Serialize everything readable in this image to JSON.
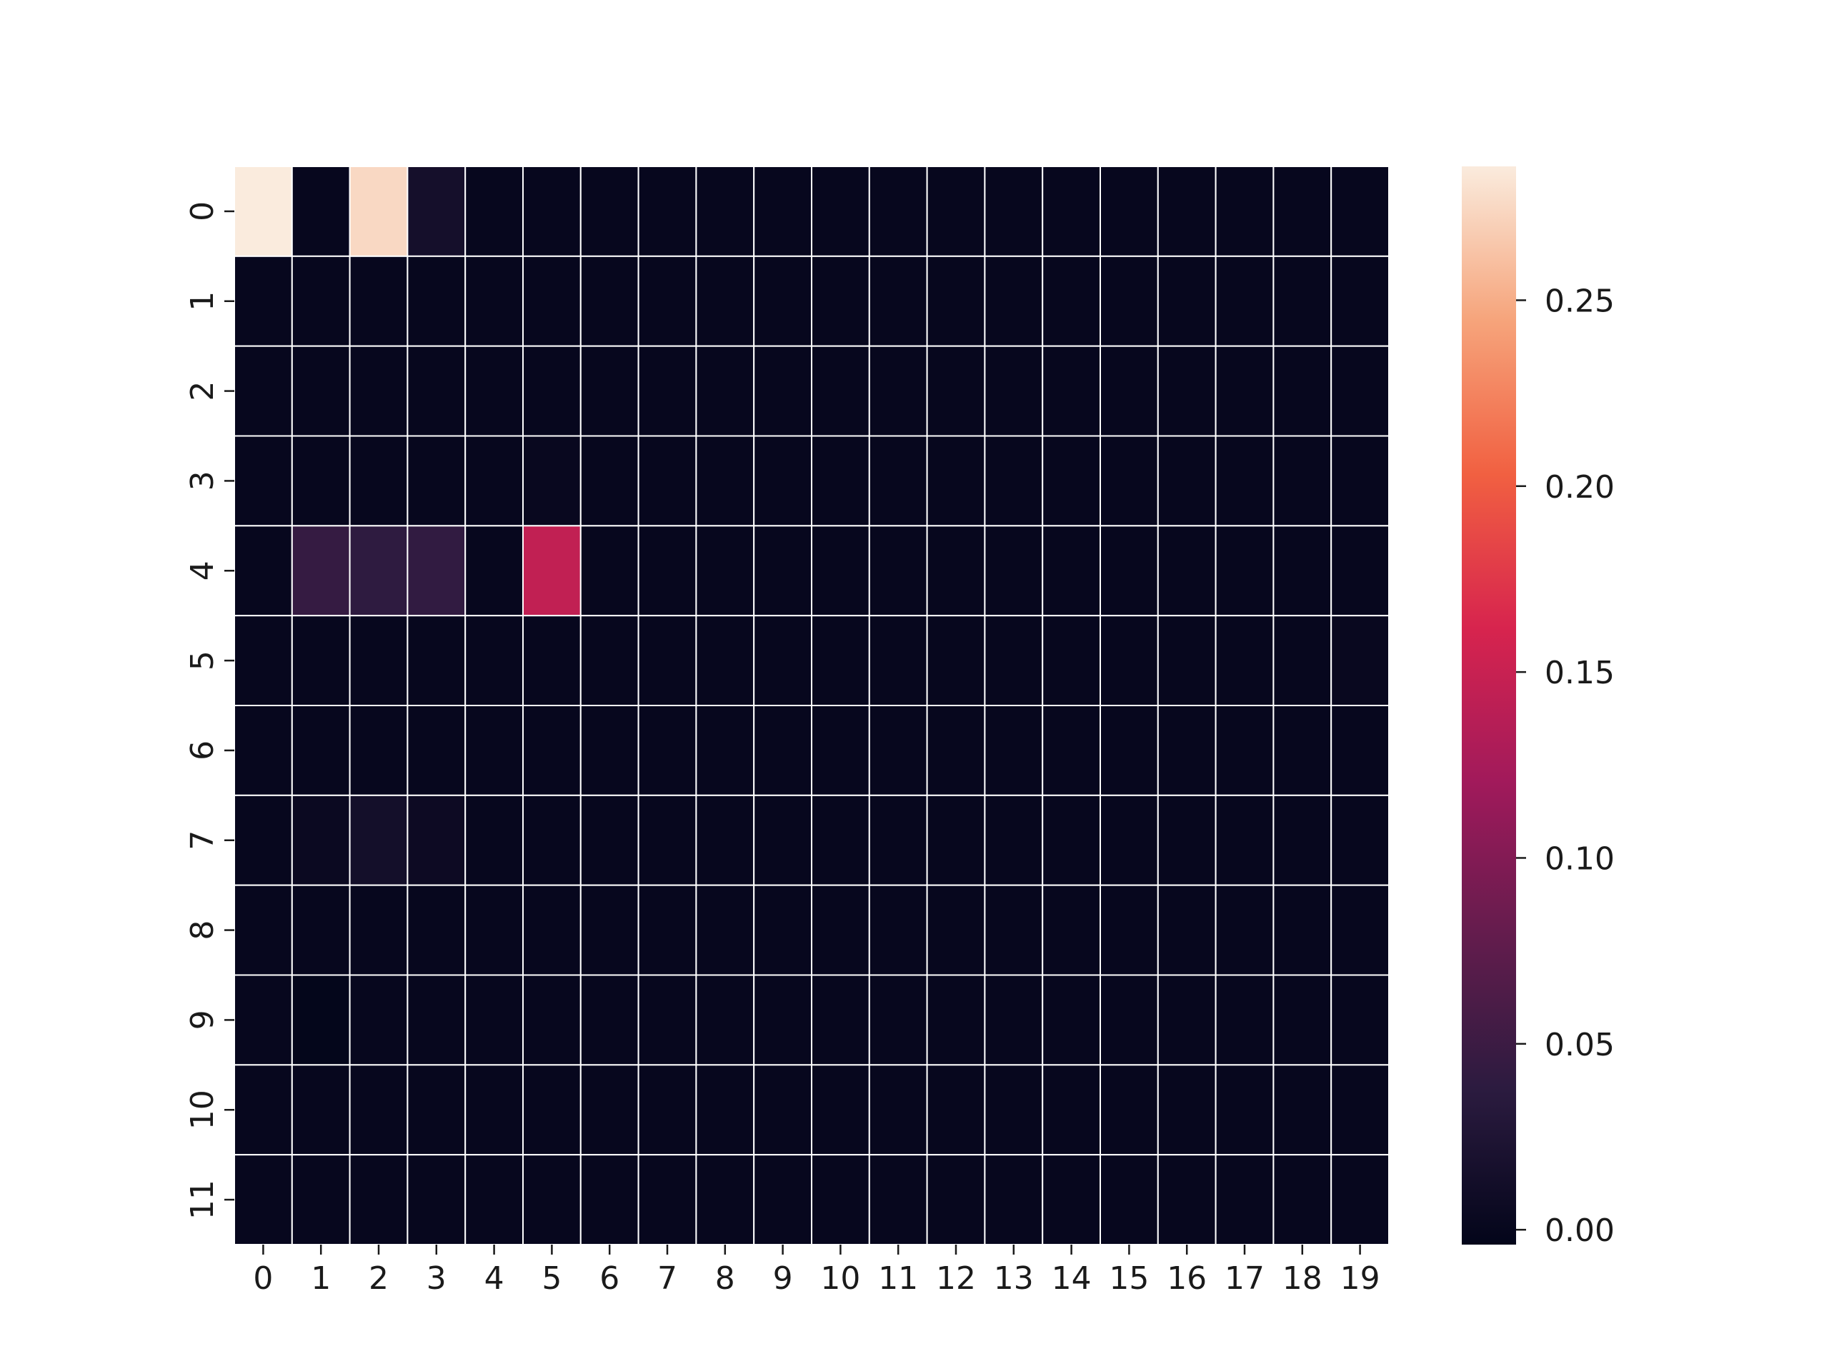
{
  "chart_data": {
    "type": "heatmap",
    "title": "",
    "xlabel": "",
    "ylabel": "",
    "x_categories": [
      "0",
      "1",
      "2",
      "3",
      "4",
      "5",
      "6",
      "7",
      "8",
      "9",
      "10",
      "11",
      "12",
      "13",
      "14",
      "15",
      "16",
      "17",
      "18",
      "19"
    ],
    "y_categories": [
      "0",
      "1",
      "2",
      "3",
      "4",
      "5",
      "6",
      "7",
      "8",
      "9",
      "10",
      "11"
    ],
    "values": [
      [
        0.286,
        0.0,
        0.275,
        0.015,
        0.0,
        0.0,
        0.0,
        0.0,
        0.0,
        0.0,
        0.0,
        0.0,
        0.0,
        0.0,
        0.0,
        0.0,
        0.0,
        0.0,
        0.0,
        0.0
      ],
      [
        0.0,
        0.0,
        0.0,
        0.0,
        0.0,
        0.0,
        0.0,
        0.0,
        0.0,
        0.0,
        0.0,
        0.0,
        0.0,
        0.0,
        0.0,
        0.0,
        0.0,
        0.0,
        0.0,
        0.0
      ],
      [
        0.0,
        0.0,
        0.0,
        0.0,
        0.0,
        0.0,
        0.0,
        0.0,
        0.0,
        0.0,
        0.0,
        0.0,
        0.0,
        0.0,
        0.0,
        0.0,
        0.0,
        0.0,
        0.0,
        0.0
      ],
      [
        0.0,
        0.0,
        0.0,
        0.0,
        0.0,
        0.002,
        0.0,
        0.0,
        0.0,
        0.0,
        0.0,
        0.0,
        0.0,
        0.0,
        0.0,
        0.0,
        0.0,
        0.0,
        0.0,
        0.0
      ],
      [
        0.0,
        0.045,
        0.04,
        0.042,
        0.0,
        0.145,
        0.0,
        0.0,
        0.0,
        0.0,
        0.0,
        0.0,
        0.0,
        0.0,
        0.0,
        0.0,
        0.0,
        0.0,
        0.0,
        0.0
      ],
      [
        0.0,
        0.0,
        0.0,
        0.0,
        0.0,
        0.0,
        0.0,
        0.0,
        0.0,
        0.0,
        0.0,
        0.0,
        0.0,
        0.0,
        0.0,
        0.0,
        0.0,
        0.0,
        0.0,
        0.002
      ],
      [
        0.0,
        0.0,
        0.0,
        0.0,
        0.0,
        0.0,
        0.0,
        0.0,
        0.0,
        0.0,
        0.0,
        0.0,
        0.0,
        0.0,
        0.0,
        0.0,
        0.0,
        0.0,
        0.0,
        0.0
      ],
      [
        0.0,
        0.004,
        0.014,
        0.006,
        0.0,
        0.0,
        0.0,
        0.0,
        0.0,
        0.0,
        0.0,
        0.0,
        0.0,
        0.0,
        0.0,
        0.0,
        0.0,
        0.0,
        0.0,
        0.0
      ],
      [
        0.0,
        0.0,
        0.0,
        0.0,
        0.0,
        0.0,
        0.0,
        0.0,
        0.0,
        0.0,
        0.0,
        0.0,
        0.0,
        0.0,
        0.0,
        0.0,
        0.0,
        0.0,
        0.0,
        0.0
      ],
      [
        0.0,
        -0.003,
        0.0,
        0.0,
        0.0,
        0.0,
        0.0,
        0.0,
        0.0,
        0.0,
        0.0,
        0.0,
        0.0,
        0.0,
        0.0,
        0.0,
        0.0,
        0.0,
        0.0,
        0.0
      ],
      [
        0.0,
        0.0,
        0.0,
        0.0,
        0.0,
        0.0,
        0.0,
        0.0,
        0.0,
        0.0,
        0.0,
        0.0,
        0.0,
        0.0,
        0.0,
        0.0,
        0.0,
        0.0,
        0.0,
        0.0
      ],
      [
        0.0,
        0.0,
        0.0,
        0.0,
        0.0,
        0.0,
        0.0,
        0.0,
        0.0,
        0.0,
        0.0,
        0.0,
        0.0,
        0.0,
        0.0,
        0.0,
        0.0,
        0.0,
        0.0,
        0.0
      ]
    ],
    "colorbar": {
      "vmin": -0.004,
      "vmax": 0.286,
      "ticks": [
        0.0,
        0.05,
        0.1,
        0.15,
        0.2,
        0.25
      ],
      "tick_labels": [
        "0.00",
        "0.05",
        "0.10",
        "0.15",
        "0.20",
        "0.25"
      ],
      "colormap": "rocket",
      "colormap_stops": [
        "#03051a",
        "#2b1b3f",
        "#631c4d",
        "#a11a5b",
        "#d7244e",
        "#f16041",
        "#f6a47b",
        "#faebdd"
      ]
    },
    "cell_border_color": "#ffffff",
    "grid": false,
    "legend": "none"
  }
}
